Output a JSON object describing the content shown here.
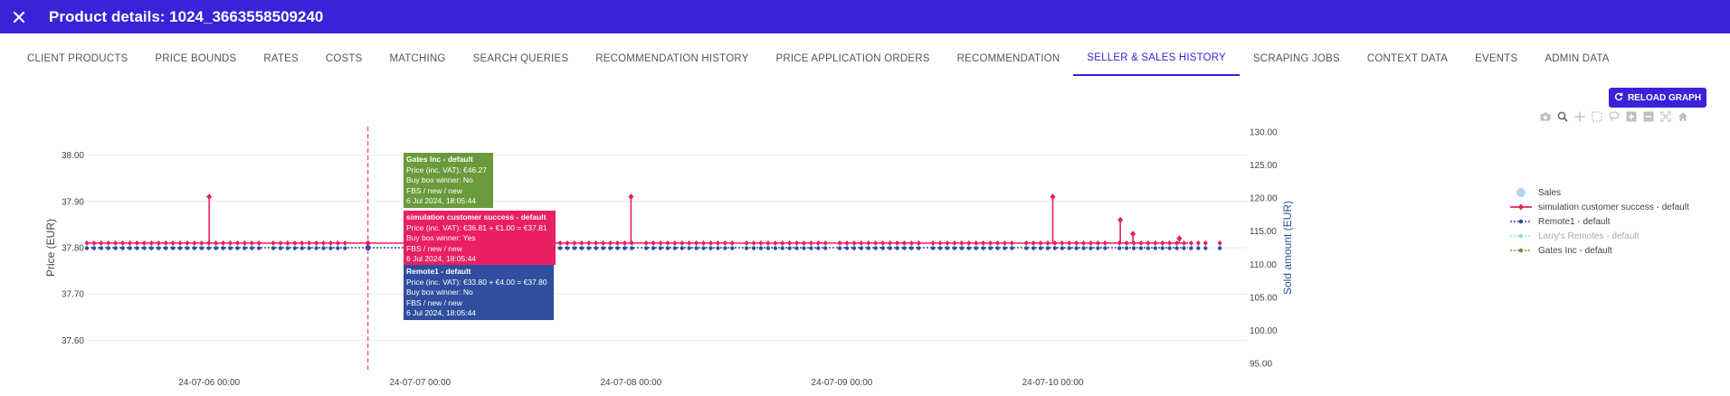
{
  "header": {
    "title": "Product details: 1024_3663558509240",
    "close_icon": "close-icon"
  },
  "tabs": [
    {
      "label": "CLIENT PRODUCTS",
      "active": false
    },
    {
      "label": "PRICE BOUNDS",
      "active": false
    },
    {
      "label": "RATES",
      "active": false
    },
    {
      "label": "COSTS",
      "active": false
    },
    {
      "label": "MATCHING",
      "active": false
    },
    {
      "label": "SEARCH QUERIES",
      "active": false
    },
    {
      "label": "RECOMMENDATION HISTORY",
      "active": false
    },
    {
      "label": "PRICE APPLICATION ORDERS",
      "active": false
    },
    {
      "label": "RECOMMENDATION",
      "active": false
    },
    {
      "label": "SELLER & SALES HISTORY",
      "active": true
    },
    {
      "label": "SCRAPING JOBS",
      "active": false
    },
    {
      "label": "CONTEXT DATA",
      "active": false
    },
    {
      "label": "EVENTS",
      "active": false
    },
    {
      "label": "ADMIN DATA",
      "active": false
    }
  ],
  "reload_button": {
    "label": "RELOAD GRAPH",
    "icon": "refresh-icon"
  },
  "modebar": [
    "camera-icon",
    "zoom-icon",
    "pan-icon",
    "box-select-icon",
    "lasso-icon",
    "zoom-in-icon",
    "zoom-out-icon",
    "autoscale-icon",
    "reset-axes-icon"
  ],
  "colors": {
    "accent": "#3a22d9",
    "simulation": "#e91e63",
    "remote1": "#2f4f9e",
    "gates": "#6a9a3c",
    "sales": "#b3d4f3",
    "larrys": "#9fd6d6"
  },
  "legend": [
    {
      "label": "Sales",
      "kind": "sales"
    },
    {
      "label": "simulation customer success - default",
      "kind": "simulation"
    },
    {
      "label": "Remote1 - default",
      "kind": "remote1"
    },
    {
      "label": "Larry's Remotes - default",
      "kind": "larrys",
      "dim": true
    },
    {
      "label": "Gates Inc - default",
      "kind": "gates"
    }
  ],
  "tooltips": [
    {
      "kind": "gates",
      "lines": [
        "Gates Inc - default",
        "Price (inc. VAT): €46.27",
        "Buy box winner: No",
        "FBS / new / new",
        "6 Jul 2024, 18:05:44"
      ]
    },
    {
      "kind": "simulation",
      "lines": [
        "simulation customer success - default",
        "Price (inc. VAT): €36.81 + €1.00 = €37.81",
        "Buy box winner: Yes",
        "FBS / new / new",
        "6 Jul 2024, 18:05:44"
      ]
    },
    {
      "kind": "remote1",
      "lines": [
        "Remote1 - default",
        "Price (inc. VAT): €33.80 + €4.00 = €37.80",
        "Buy box winner: No",
        "FBS / new / new",
        "6 Jul 2024, 18:05:44"
      ]
    }
  ],
  "chart_data": {
    "type": "line",
    "ylabel": "Price (EUR)",
    "y2label": "Sold amount (EUR)",
    "y_ticks": [
      "38.00",
      "37.90",
      "37.80",
      "37.70",
      "37.60"
    ],
    "y_range": [
      37.55,
      38.05
    ],
    "y2_ticks": [
      "130.00",
      "125.00",
      "120.00",
      "115.00",
      "110.00",
      "105.00",
      "100.00",
      "95.00"
    ],
    "y2_range": [
      95,
      130
    ],
    "x_ticks": [
      "24-07-06 00:00",
      "24-07-07 00:00",
      "24-07-08 00:00",
      "24-07-09 00:00",
      "24-07-10 00:00"
    ],
    "x_start_day": -0.58,
    "x_end_day": 4.92,
    "hover_day": 0.753,
    "series": [
      {
        "name": "simulation customer success - default",
        "base": 37.81,
        "spikes": [
          {
            "day": 0.0,
            "value": 37.91
          },
          {
            "day": 2.0,
            "value": 37.91
          },
          {
            "day": 4.0,
            "value": 37.91
          },
          {
            "day": 4.32,
            "value": 37.86
          },
          {
            "day": 4.38,
            "value": 37.83
          },
          {
            "day": 4.6,
            "value": 37.82
          }
        ]
      },
      {
        "name": "Remote1 - default",
        "value": 37.8
      }
    ],
    "grid": true
  }
}
